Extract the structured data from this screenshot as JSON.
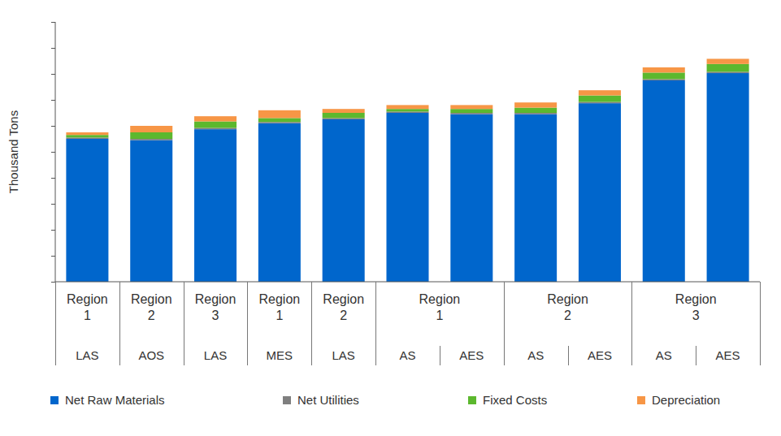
{
  "chart_data": {
    "type": "bar",
    "stacked": true,
    "tick_labels": false,
    "grid": false,
    "legend": "bottom",
    "y_label": "Thousand Tons",
    "categories": [
      [
        "Region 1",
        "LAS"
      ],
      [
        "Region 2",
        "AOS"
      ],
      [
        "Region 3",
        "LAS"
      ],
      [
        "Region 1",
        "MES"
      ],
      [
        "Region 2",
        "LAS"
      ],
      [
        "Region 1",
        "AS"
      ],
      [
        "Region 1",
        "AES"
      ],
      [
        "Region 2",
        "AS"
      ],
      [
        "Region 2",
        "AES"
      ],
      [
        "Region 3",
        "AS"
      ],
      [
        "Region 3",
        "AES"
      ]
    ],
    "series": [
      {
        "name": "Net Raw Materials",
        "color": "#0066cc",
        "values": [
          5.5,
          5.45,
          5.87,
          6.1,
          6.25,
          6.5,
          6.45,
          6.45,
          6.87,
          7.75,
          8.03
        ]
      },
      {
        "name": "Net Utilities",
        "color": "#7f7f7f",
        "values": [
          0.05,
          0.05,
          0.05,
          0.05,
          0.05,
          0.05,
          0.05,
          0.05,
          0.05,
          0.05,
          0.05
        ]
      },
      {
        "name": "Fixed Costs",
        "color": "#5cb82e",
        "values": [
          0.1,
          0.25,
          0.25,
          0.15,
          0.2,
          0.1,
          0.15,
          0.2,
          0.25,
          0.25,
          0.3
        ]
      },
      {
        "name": "Depreciation",
        "color": "#f79646",
        "values": [
          0.1,
          0.25,
          0.2,
          0.3,
          0.15,
          0.15,
          0.15,
          0.2,
          0.2,
          0.2,
          0.2
        ]
      }
    ],
    "ylim": [
      0,
      10
    ],
    "yticks": [
      0,
      1,
      2,
      3,
      4,
      5,
      6,
      7,
      8,
      9,
      10
    ]
  }
}
